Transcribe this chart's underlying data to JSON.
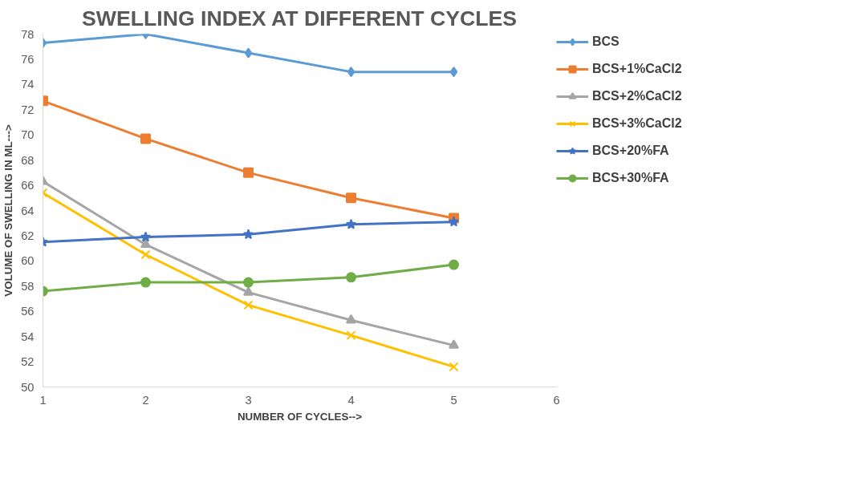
{
  "chart_data": {
    "type": "line",
    "title": "SWELLING INDEX AT DIFFERENT CYCLES",
    "xlabel": "NUMBER OF CYCLES-->",
    "ylabel": "VOLUME OF SWELLING IN ML--->",
    "x": [
      1,
      2,
      3,
      4,
      5
    ],
    "xlim": [
      1,
      6
    ],
    "xticks": [
      1,
      2,
      3,
      4,
      5,
      6
    ],
    "ylim": [
      50,
      78
    ],
    "yticks": [
      50,
      52,
      54,
      56,
      58,
      60,
      62,
      64,
      66,
      68,
      70,
      72,
      74,
      76,
      78
    ],
    "grid": false,
    "legend": "right",
    "line_style": "solid",
    "series": [
      {
        "name": "BCS",
        "color": "#5b9bd5",
        "marker": "diamond",
        "values": [
          77.3,
          78.0,
          76.5,
          75.0,
          75.0
        ]
      },
      {
        "name": "BCS+1%CaCl2",
        "color": "#ed7d31",
        "marker": "square",
        "values": [
          72.7,
          69.7,
          67.0,
          65.0,
          63.4
        ]
      },
      {
        "name": "BCS+2%CaCl2",
        "color": "#a5a5a5",
        "marker": "triangle",
        "values": [
          66.3,
          61.3,
          57.5,
          55.3,
          53.3
        ]
      },
      {
        "name": "BCS+3%CaCl2",
        "color": "#ffc000",
        "marker": "cross",
        "values": [
          65.4,
          60.5,
          56.5,
          54.1,
          51.6
        ]
      },
      {
        "name": "BCS+20%FA",
        "color": "#4472c4",
        "marker": "star",
        "values": [
          61.5,
          61.9,
          62.1,
          62.9,
          63.1
        ]
      },
      {
        "name": "BCS+30%FA",
        "color": "#70ad47",
        "marker": "circle",
        "values": [
          57.6,
          58.3,
          58.3,
          58.7,
          59.7
        ]
      }
    ]
  }
}
